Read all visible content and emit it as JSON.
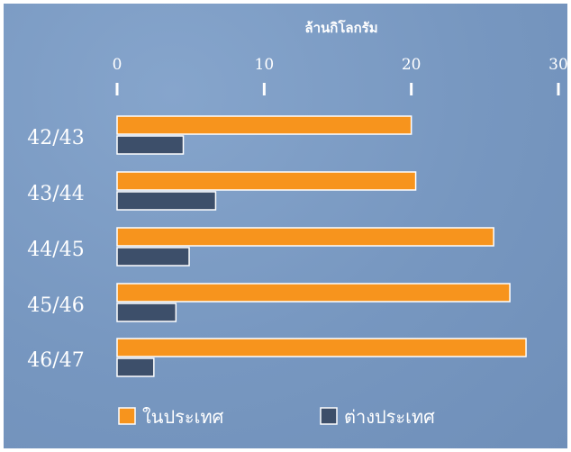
{
  "chart_data": {
    "type": "bar",
    "orientation": "horizontal",
    "title": "",
    "xlabel": "ล้านกิโลกรัม",
    "ylabel": "",
    "categories": [
      "42/43",
      "43/44",
      "44/45",
      "45/46",
      "46/47"
    ],
    "series": [
      {
        "name": "ในประเทศ",
        "color": "#f7941d",
        "values": [
          20,
          20.3,
          25.6,
          26.7,
          27.8
        ]
      },
      {
        "name": "ต่างประเทศ",
        "color": "#3d4f6a",
        "values": [
          4.5,
          6.7,
          4.9,
          4.0,
          2.5
        ]
      }
    ],
    "xlim": [
      0,
      30
    ],
    "ticks": [
      0,
      10,
      20,
      30
    ],
    "grid": false,
    "legend_position": "bottom"
  }
}
